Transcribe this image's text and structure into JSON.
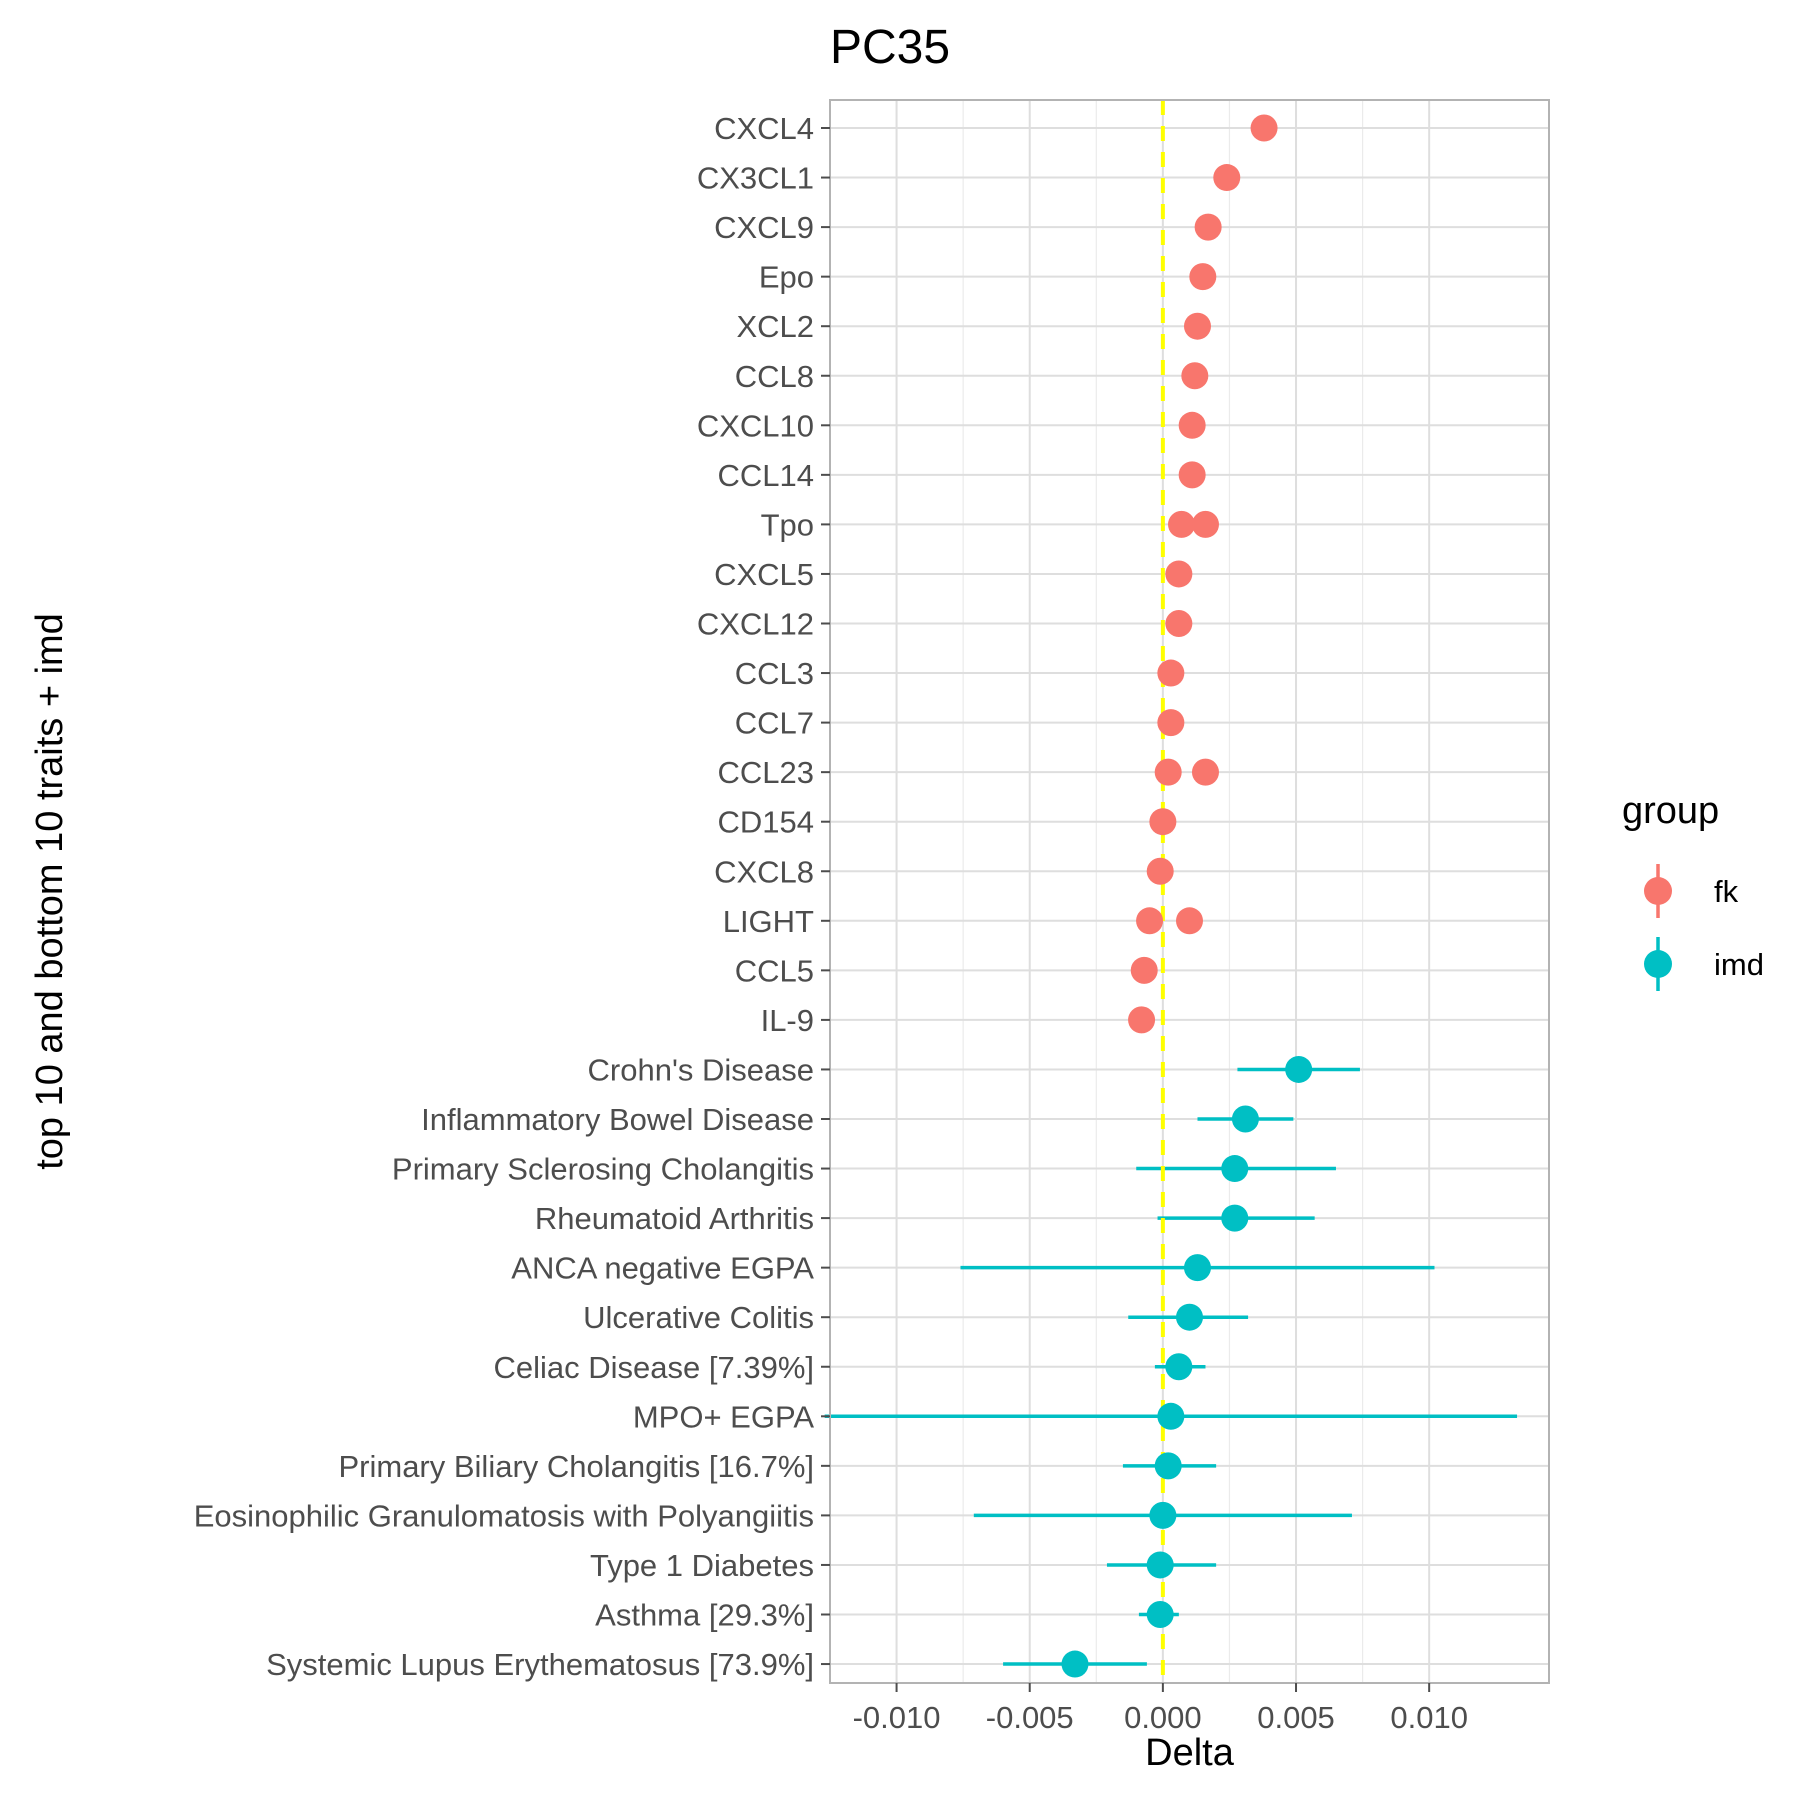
{
  "chart_data": {
    "type": "scatter",
    "title": "PC35",
    "xlabel": "Delta",
    "ylabel": "top 10 and bottom 10 traits + imd",
    "xlim": [
      -0.0125,
      0.0145
    ],
    "xticks": [
      -0.01,
      -0.005,
      0.0,
      0.005,
      0.01
    ],
    "xtick_labels": [
      "-0.010",
      "-0.005",
      "0.000",
      "0.005",
      "0.010"
    ],
    "reference_line": {
      "x": 0,
      "color": "#ffff00",
      "style": "dashed"
    },
    "grid": true,
    "legend": {
      "title": "group",
      "placement": "right",
      "entries": [
        {
          "label": "fk",
          "color": "#f8766d"
        },
        {
          "label": "imd",
          "color": "#00bfc4"
        }
      ]
    },
    "categories": [
      "CXCL4",
      "CX3CL1",
      "CXCL9",
      "Epo",
      "XCL2",
      "CCL8",
      "CXCL10",
      "CCL14",
      "Tpo",
      "CXCL5",
      "CXCL12",
      "CCL3",
      "CCL7",
      "CCL23",
      "CD154",
      "CXCL8",
      "LIGHT",
      "CCL5",
      "IL-9",
      "Crohn's Disease",
      "Inflammatory Bowel Disease",
      "Primary Sclerosing Cholangitis",
      "Rheumatoid Arthritis",
      "ANCA negative EGPA",
      "Ulcerative Colitis",
      "Celiac Disease [7.39%]",
      "MPO+ EGPA",
      "Primary Biliary Cholangitis [16.7%]",
      "Eosinophilic Granulomatosis with Polyangiitis",
      "Type 1 Diabetes",
      "Asthma [29.3%]",
      "Systemic Lupus Erythematosus [73.9%]"
    ],
    "series": [
      {
        "name": "fk",
        "color": "#f8766d",
        "points": [
          {
            "trait": "CXCL4",
            "x": 0.0038
          },
          {
            "trait": "CX3CL1",
            "x": 0.0024
          },
          {
            "trait": "CXCL9",
            "x": 0.0017
          },
          {
            "trait": "Epo",
            "x": 0.0015
          },
          {
            "trait": "XCL2",
            "x": 0.0013
          },
          {
            "trait": "CCL8",
            "x": 0.0012
          },
          {
            "trait": "CXCL10",
            "x": 0.0011
          },
          {
            "trait": "CCL14",
            "x": 0.0011
          },
          {
            "trait": "Tpo",
            "x": 0.0007
          },
          {
            "trait": "Tpo",
            "x": 0.0016
          },
          {
            "trait": "CXCL5",
            "x": 0.0006
          },
          {
            "trait": "CXCL12",
            "x": 0.0006
          },
          {
            "trait": "CCL3",
            "x": 0.0003
          },
          {
            "trait": "CCL7",
            "x": 0.0003
          },
          {
            "trait": "CCL23",
            "x": 0.0002
          },
          {
            "trait": "CCL23",
            "x": 0.0016
          },
          {
            "trait": "CD154",
            "x": 0.0
          },
          {
            "trait": "CXCL8",
            "x": -0.0001
          },
          {
            "trait": "LIGHT",
            "x": -0.0005
          },
          {
            "trait": "LIGHT",
            "x": 0.001
          },
          {
            "trait": "CCL5",
            "x": -0.0007
          },
          {
            "trait": "IL-9",
            "x": -0.0008
          }
        ]
      },
      {
        "name": "imd",
        "color": "#00bfc4",
        "points": [
          {
            "trait": "Crohn's Disease",
            "x": 0.0051,
            "lo": 0.0028,
            "hi": 0.0074
          },
          {
            "trait": "Inflammatory Bowel Disease",
            "x": 0.0031,
            "lo": 0.0013,
            "hi": 0.0049
          },
          {
            "trait": "Primary Sclerosing Cholangitis",
            "x": 0.0027,
            "lo": -0.001,
            "hi": 0.0065
          },
          {
            "trait": "Rheumatoid Arthritis",
            "x": 0.0027,
            "lo": -0.0002,
            "hi": 0.0057
          },
          {
            "trait": "ANCA negative EGPA",
            "x": 0.0013,
            "lo": -0.0076,
            "hi": 0.0102
          },
          {
            "trait": "Ulcerative Colitis",
            "x": 0.001,
            "lo": -0.0013,
            "hi": 0.0032
          },
          {
            "trait": "Celiac Disease [7.39%]",
            "x": 0.0006,
            "lo": -0.0003,
            "hi": 0.0016
          },
          {
            "trait": "MPO+ EGPA",
            "x": 0.0003,
            "lo": -0.0127,
            "hi": 0.0133
          },
          {
            "trait": "Primary Biliary Cholangitis [16.7%]",
            "x": 0.0002,
            "lo": -0.0015,
            "hi": 0.002
          },
          {
            "trait": "Eosinophilic Granulomatosis with Polyangiitis",
            "x": 0.0,
            "lo": -0.0071,
            "hi": 0.0071
          },
          {
            "trait": "Type 1 Diabetes",
            "x": -0.0001,
            "lo": -0.0021,
            "hi": 0.002
          },
          {
            "trait": "Asthma [29.3%]",
            "x": -0.0001,
            "lo": -0.0009,
            "hi": 0.0006
          },
          {
            "trait": "Systemic Lupus Erythematosus [73.9%]",
            "x": -0.0033,
            "lo": -0.006,
            "hi": -0.0006
          }
        ]
      }
    ]
  }
}
